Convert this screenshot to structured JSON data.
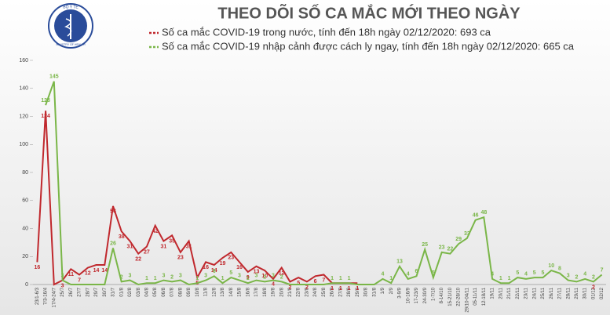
{
  "logo": {
    "top": "BỘ Y TẾ",
    "bottom": "MINISTRY OF HEALTH"
  },
  "chart_data": {
    "type": "line",
    "title": "THEO DÕI SỐ CA MẮC MỚI THEO NGÀY",
    "categories": [
      "23/1-6/3",
      "7/3-16/4",
      "17/4-24/7",
      "25/7",
      "26/7",
      "27/7",
      "28/7",
      "29/7",
      "30/7",
      "31/7",
      "01/8",
      "02/8",
      "03/8",
      "04/8",
      "05/8",
      "06/8",
      "07/8",
      "08/8",
      "09/8",
      "10/8",
      "11/8",
      "12/8",
      "13/8",
      "14/8",
      "15/8",
      "16/8",
      "17/8",
      "18/8",
      "19/8",
      "20/8",
      "21/8",
      "22/8",
      "23/8",
      "24/8",
      "25/8",
      "26/8",
      "27/8",
      "28/8",
      "29/8",
      "30/8",
      "31/8",
      "1/9",
      "2/9",
      "3-9/9",
      "10-16/9",
      "17-23/9",
      "24-30/9",
      "1-7/10",
      "8-14/10",
      "15-21/10",
      "22-28/10",
      "29/10-04/11",
      "05-11/11",
      "12-18/11",
      "19/11",
      "20/11",
      "21/11",
      "22/11",
      "23/11",
      "24/11",
      "25/11",
      "26/11",
      "27/11",
      "28/11",
      "29/11",
      "30/11",
      "01/12",
      "02/12"
    ],
    "series": [
      {
        "name": "Số ca mắc COVID-19 trong nước, tính đến 18h ngày 02/12/2020: 693 ca",
        "color": "#c0282d",
        "values": [
          16,
          124,
          0,
          3,
          11,
          7,
          12,
          14,
          14,
          56,
          38,
          31,
          22,
          27,
          42,
          31,
          35,
          23,
          31,
          5,
          16,
          14,
          19,
          23,
          16,
          9,
          13,
          10,
          4,
          12,
          2,
          5,
          2,
          6,
          7,
          1,
          1,
          1,
          1,
          null,
          null,
          null,
          null,
          null,
          null,
          null,
          null,
          null,
          null,
          null,
          null,
          null,
          null,
          null,
          null,
          null,
          null,
          null,
          null,
          null,
          null,
          null,
          null,
          null,
          null,
          null,
          2,
          null
        ]
      },
      {
        "name": "Số ca mắc COVID-19 nhập cảnh được cách ly ngay, tính đến 18h ngày 02/12/2020: 665 ca",
        "color": "#7ab648",
        "values": [
          null,
          128,
          145,
          3,
          0,
          0,
          0,
          0,
          0,
          26,
          2,
          3,
          0,
          1,
          1,
          3,
          2,
          3,
          0,
          1,
          3,
          6,
          1,
          5,
          3,
          1,
          3,
          2,
          3,
          2,
          0,
          0,
          0,
          0,
          0,
          1,
          1,
          1,
          0,
          0,
          0,
          4,
          1,
          13,
          4,
          6,
          25,
          5,
          23,
          22,
          29,
          33,
          46,
          48,
          4,
          1,
          1,
          5,
          4,
          5,
          5,
          10,
          8,
          3,
          2,
          4,
          2,
          7
        ]
      }
    ],
    "ylim": [
      0,
      160
    ],
    "yticks": [
      0,
      20,
      40,
      60,
      80,
      100,
      120,
      140,
      160
    ]
  }
}
